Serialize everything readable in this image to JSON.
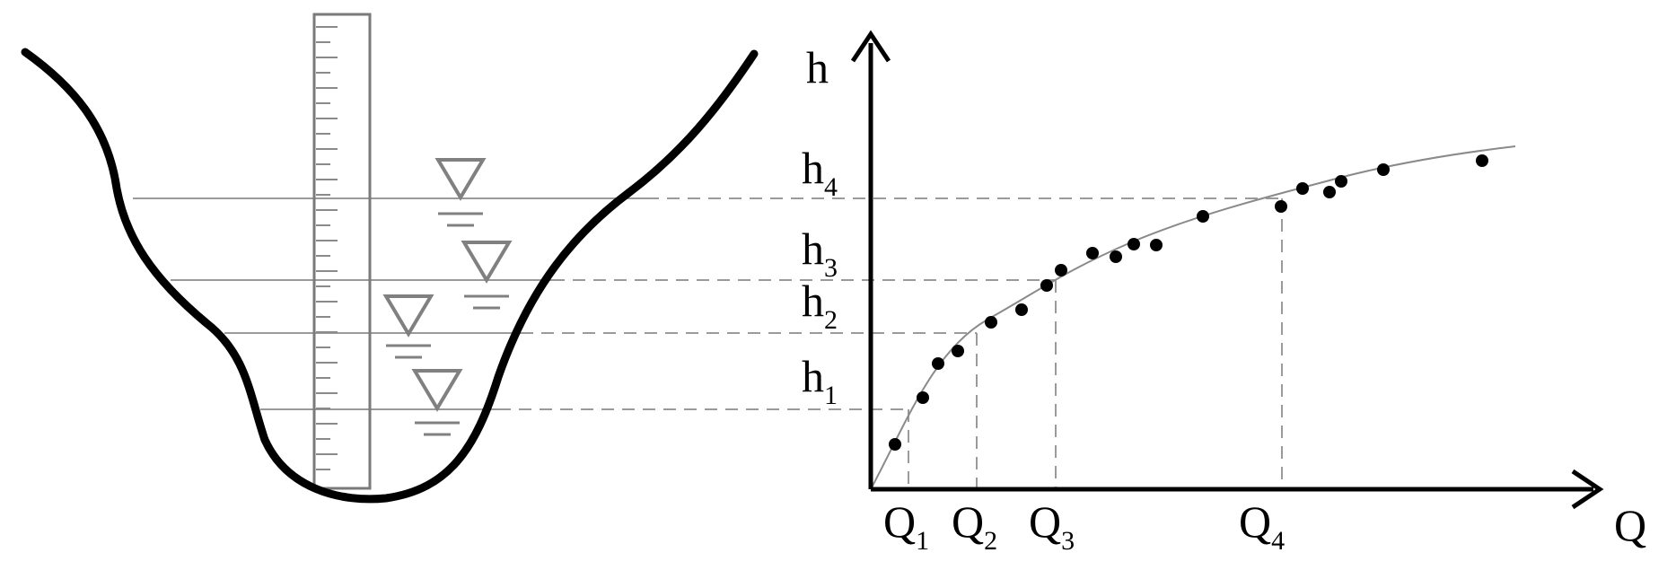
{
  "diagram": {
    "labels": {
      "y_axis": "h",
      "x_axis": "Q",
      "base_h": "h",
      "base_q": "Q",
      "h_subscripts": [
        "1",
        "2",
        "3",
        "4"
      ],
      "q_subscripts": [
        "1",
        "2",
        "3",
        "4"
      ]
    },
    "colors": {
      "ink": "#000000",
      "water_line": "#9a9a9a",
      "dashed_line": "#9a9a9a",
      "curve": "#8a8a8a"
    },
    "icons": [
      "water-level-triangle-icon"
    ]
  }
}
